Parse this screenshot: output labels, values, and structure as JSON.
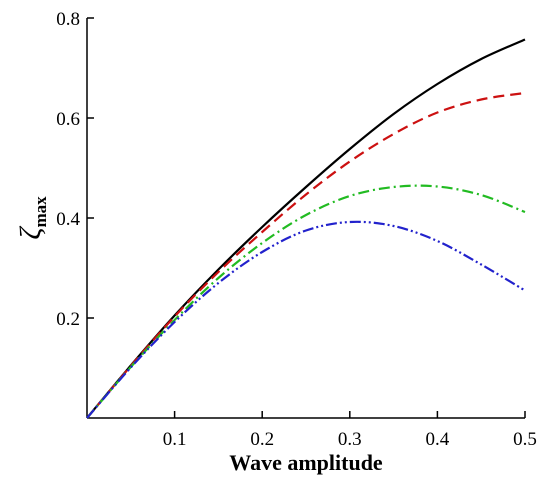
{
  "chart_data": {
    "type": "line",
    "xlabel": "Wave amplitude",
    "ylabel": "ζ",
    "ylabel_subscript": "max",
    "xlim": [
      0,
      0.5
    ],
    "ylim": [
      0,
      0.8
    ],
    "xticks": [
      0.1,
      0.2,
      0.3,
      0.4,
      0.5
    ],
    "xtick_labels": [
      "0.1",
      "0.2",
      "0.3",
      "0.4",
      "0.5"
    ],
    "yticks": [
      0.2,
      0.4,
      0.6,
      0.8
    ],
    "ytick_labels": [
      "0.2",
      "0.4",
      "0.6",
      "0.8"
    ],
    "grid": false,
    "legend": "none",
    "x": [
      0,
      0.05,
      0.1,
      0.15,
      0.2,
      0.25,
      0.3,
      0.35,
      0.4,
      0.45,
      0.5
    ],
    "series": [
      {
        "style": "solid",
        "color": "#000000",
        "values": [
          0,
          0.105,
          0.205,
          0.297,
          0.382,
          0.462,
          0.538,
          0.608,
          0.668,
          0.718,
          0.757
        ]
      },
      {
        "style": "dashed",
        "color": "#cc1111",
        "values": [
          0,
          0.104,
          0.203,
          0.292,
          0.372,
          0.447,
          0.513,
          0.568,
          0.611,
          0.637,
          0.65
        ]
      },
      {
        "style": "dashdot",
        "color": "#22bb22",
        "values": [
          0,
          0.102,
          0.196,
          0.28,
          0.35,
          0.406,
          0.444,
          0.462,
          0.463,
          0.446,
          0.412
        ]
      },
      {
        "style": "dashdotdot",
        "color": "#2222cc",
        "values": [
          0,
          0.101,
          0.192,
          0.27,
          0.332,
          0.375,
          0.392,
          0.384,
          0.354,
          0.307,
          0.255
        ]
      }
    ]
  }
}
